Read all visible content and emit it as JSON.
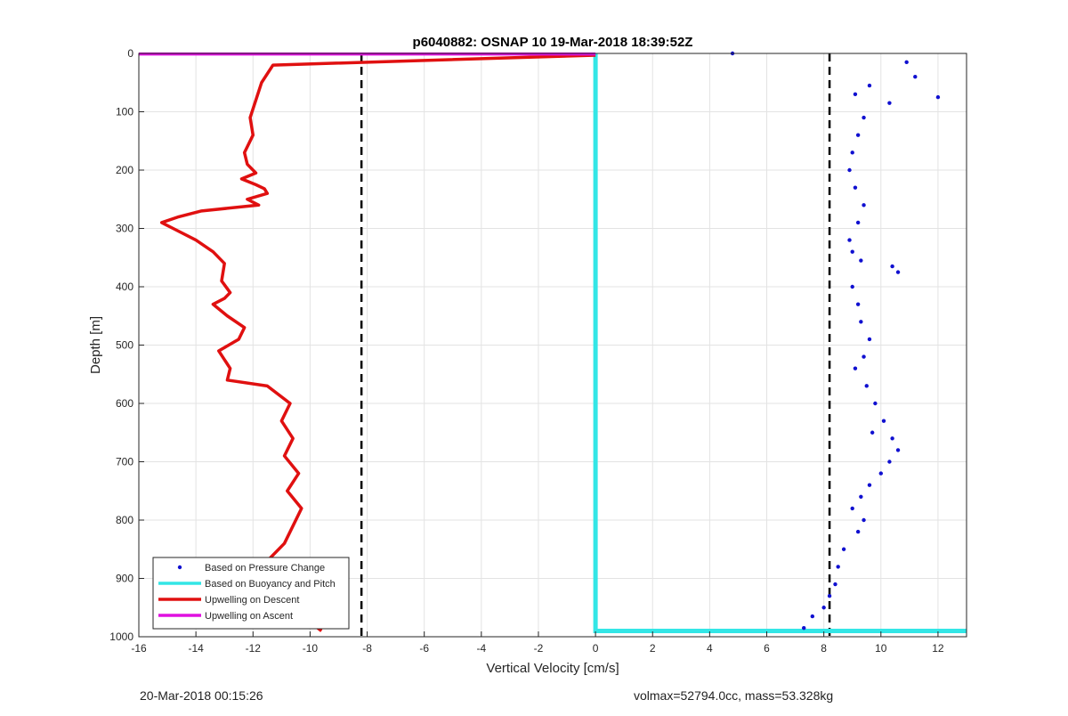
{
  "figure": {
    "footer_left": "20-Mar-2018 00:15:26",
    "footer_right": "volmax=52794.0cc, mass=53.328kg"
  },
  "chart_data": {
    "type": "scatter",
    "title": "p6040882: OSNAP 10 19-Mar-2018 18:39:52Z",
    "xlabel": "Vertical Velocity [cm/s]",
    "ylabel": "Depth [m]",
    "xlim": [
      -16,
      13
    ],
    "ylim": [
      0,
      1000
    ],
    "y_reversed": true,
    "grid": true,
    "x_ticks": [
      -16,
      -14,
      -12,
      -10,
      -8,
      -6,
      -4,
      -2,
      0,
      2,
      4,
      6,
      8,
      10,
      12
    ],
    "y_ticks": [
      0,
      100,
      200,
      300,
      400,
      500,
      600,
      700,
      800,
      900,
      1000
    ],
    "legend_placement": "bottom-left",
    "legend": [
      {
        "label": "Based on Pressure Change",
        "color": "#1010d0",
        "style": "dot"
      },
      {
        "label": "Based on Buoyancy and Pitch",
        "color": "#33e6e6",
        "style": "line"
      },
      {
        "label": "Upwelling on Descent",
        "color": "#e01010",
        "style": "line"
      },
      {
        "label": "Upwelling on Ascent",
        "color": "#e010e0",
        "style": "line"
      }
    ],
    "reference_lines_x": [
      -8.2,
      8.2
    ],
    "series": [
      {
        "name": "Upwelling on Descent",
        "color": "#e01010",
        "x": [
          0,
          -11.3,
          -11.7,
          -11.9,
          -12.1,
          -12.0,
          -12.3,
          -12.2,
          -11.9,
          -12.4,
          -11.9,
          -11.6,
          -11.5,
          -12.2,
          -11.8,
          -13.8,
          -14.6,
          -15.2,
          -14.8,
          -14.0,
          -13.4,
          -13.0,
          -13.1,
          -12.8,
          -13.0,
          -13.4,
          -12.9,
          -12.3,
          -12.5,
          -13.2,
          -12.8,
          -12.9,
          -11.5,
          -10.7,
          -11.0,
          -10.6,
          -10.9,
          -10.4,
          -10.8,
          -10.3,
          -10.6,
          -10.9,
          -11.5,
          -11.4,
          -11.0,
          -10.4,
          -10.0,
          -9.6
        ],
        "y": [
          3,
          20,
          50,
          80,
          110,
          140,
          170,
          190,
          205,
          215,
          225,
          232,
          240,
          250,
          260,
          270,
          280,
          290,
          300,
          320,
          340,
          360,
          390,
          410,
          420,
          430,
          450,
          470,
          490,
          510,
          540,
          560,
          570,
          600,
          630,
          660,
          690,
          720,
          750,
          780,
          810,
          840,
          870,
          900,
          930,
          955,
          975,
          990
        ]
      },
      {
        "name": "Based on Pressure Change",
        "color": "#1010d0",
        "x": [
          4.8,
          10.9,
          11.2,
          9.6,
          9.1,
          10.3,
          12.0,
          9.4,
          9.2,
          9.0,
          8.9,
          9.1,
          9.4,
          9.2,
          8.9,
          9.0,
          9.3,
          10.4,
          10.6,
          9.0,
          9.2,
          9.3,
          9.6,
          9.4,
          9.1,
          9.5,
          9.8,
          10.1,
          9.7,
          10.4,
          10.6,
          10.3,
          10.0,
          9.6,
          9.3,
          9.0,
          9.4,
          9.2,
          8.7,
          8.5,
          8.4,
          8.2,
          8.0,
          7.6,
          7.3
        ],
        "y": [
          0,
          15,
          40,
          55,
          70,
          85,
          75,
          110,
          140,
          170,
          200,
          230,
          260,
          290,
          320,
          340,
          355,
          365,
          375,
          400,
          430,
          460,
          490,
          520,
          540,
          570,
          600,
          630,
          650,
          660,
          680,
          700,
          720,
          740,
          760,
          780,
          800,
          820,
          850,
          880,
          910,
          930,
          950,
          965,
          985
        ]
      },
      {
        "name": "Based on Buoyancy and Pitch",
        "color": "#33e6e6",
        "x": [
          0,
          0,
          13
        ],
        "y": [
          0,
          990,
          990
        ]
      },
      {
        "name": "Upwelling on Ascent",
        "color": "#e010e0",
        "x": [
          -16,
          0
        ],
        "y": [
          1,
          1
        ]
      }
    ]
  }
}
